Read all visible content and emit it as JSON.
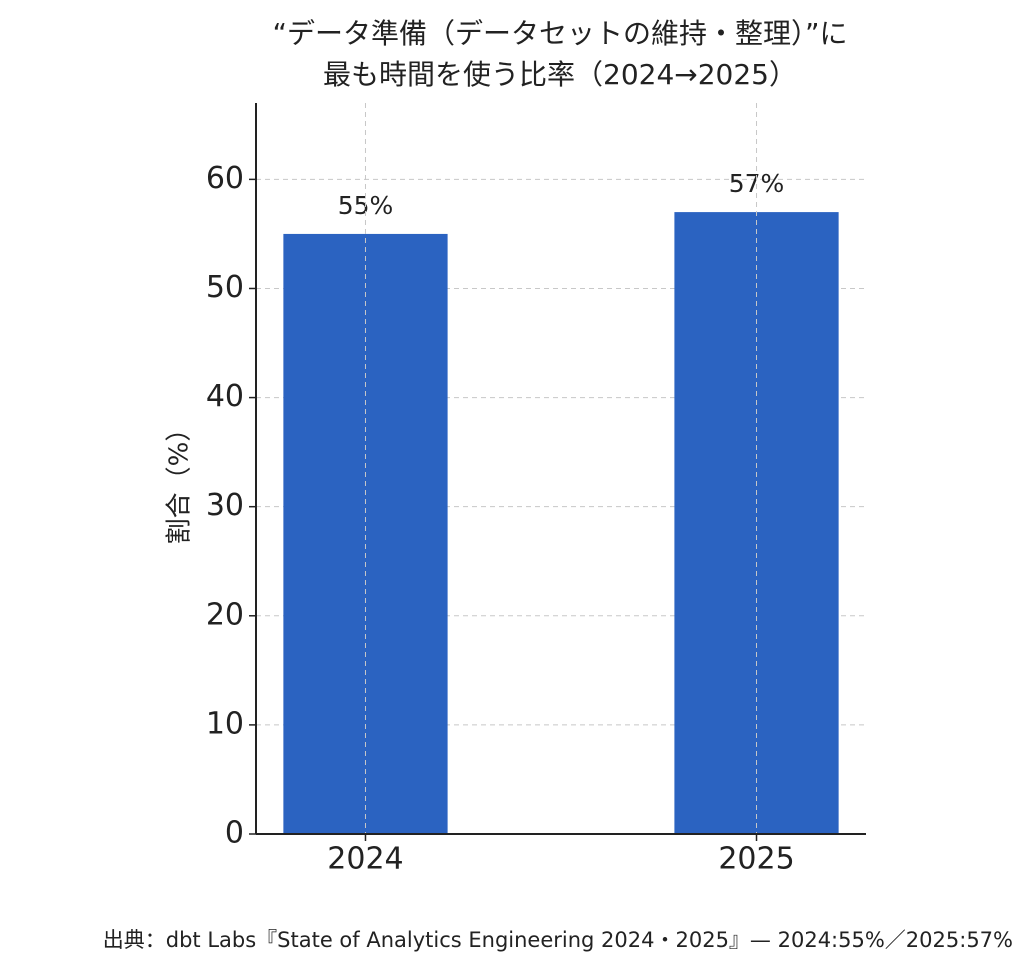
{
  "chart_data": {
    "type": "bar",
    "title": [
      "“データ準備（データセットの維持・整理）”に",
      "最も時間を使う比率（2024→2025）"
    ],
    "y_label": "割合（%）",
    "categories": [
      "2024",
      "2025"
    ],
    "values": [
      55,
      57
    ],
    "value_labels": [
      "55%",
      "57%"
    ],
    "color": "#2b63c1",
    "ylim": [
      0,
      67
    ],
    "yticks": [
      0,
      10,
      20,
      30,
      40,
      50,
      60
    ],
    "grid": true,
    "source": "出典：dbt Labs『State of Analytics Engineering 2024・2025』— 2024:55%／2025:57%"
  }
}
